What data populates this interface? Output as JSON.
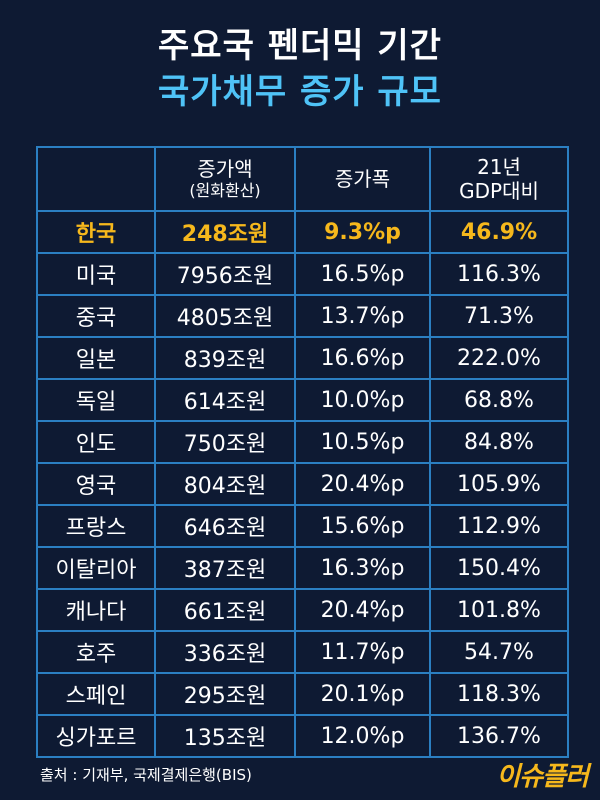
{
  "title_line1": "주요국 펜더믹 기간",
  "title_line2": "국가채무 증가 규모",
  "accent_color": "#4fc3f7",
  "highlight_color": "#f6b81c",
  "table": {
    "headers": [
      {
        "main": "",
        "sub": ""
      },
      {
        "main": "증가액",
        "sub": "(원화환산)"
      },
      {
        "main": "증가폭",
        "sub": ""
      },
      {
        "main": "21년",
        "sub": "GDP대비"
      }
    ]
  },
  "chart_data": {
    "type": "table",
    "columns": [
      "",
      "증가액(원화환산)",
      "증가폭",
      "21년 GDP대비"
    ],
    "highlight_row": 0,
    "rows": [
      [
        "한국",
        "248조원",
        "9.3%p",
        "46.9%"
      ],
      [
        "미국",
        "7956조원",
        "16.5%p",
        "116.3%"
      ],
      [
        "중국",
        "4805조원",
        "13.7%p",
        "71.3%"
      ],
      [
        "일본",
        "839조원",
        "16.6%p",
        "222.0%"
      ],
      [
        "독일",
        "614조원",
        "10.0%p",
        "68.8%"
      ],
      [
        "인도",
        "750조원",
        "10.5%p",
        "84.8%"
      ],
      [
        "영국",
        "804조원",
        "20.4%p",
        "105.9%"
      ],
      [
        "프랑스",
        "646조원",
        "15.6%p",
        "112.9%"
      ],
      [
        "이탈리아",
        "387조원",
        "16.3%p",
        "150.4%"
      ],
      [
        "캐나다",
        "661조원",
        "20.4%p",
        "101.8%"
      ],
      [
        "호주",
        "336조원",
        "11.7%p",
        "54.7%"
      ],
      [
        "스페인",
        "295조원",
        "20.1%p",
        "118.3%"
      ],
      [
        "싱가포르",
        "135조원",
        "12.0%p",
        "136.7%"
      ]
    ]
  },
  "source": "출처 : 기재부, 국제결제은행(BIS)",
  "logo_text": "이슈플러",
  "logo_icon": "brand-logo"
}
